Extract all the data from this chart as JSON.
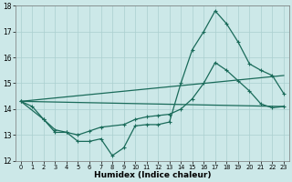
{
  "xlabel": "Humidex (Indice chaleur)",
  "bg_color": "#cce8e8",
  "grid_color": "#aacfcf",
  "line_color": "#1a6b5a",
  "xlim": [
    -0.5,
    23.5
  ],
  "ylim": [
    12,
    18
  ],
  "yticks": [
    12,
    13,
    14,
    15,
    16,
    17,
    18
  ],
  "xticks": [
    0,
    1,
    2,
    3,
    4,
    5,
    6,
    7,
    8,
    9,
    10,
    11,
    12,
    13,
    14,
    15,
    16,
    17,
    18,
    19,
    20,
    21,
    22,
    23
  ],
  "line_flat": {
    "x": [
      0,
      23
    ],
    "y": [
      14.3,
      14.1
    ]
  },
  "line_rising": {
    "x": [
      0,
      23
    ],
    "y": [
      14.3,
      15.3
    ]
  },
  "line_spike": {
    "x": [
      0,
      1,
      2,
      3,
      4,
      5,
      6,
      7,
      8,
      9,
      10,
      11,
      12,
      13,
      14,
      15,
      16,
      17,
      18,
      19,
      20,
      21,
      22,
      23
    ],
    "y": [
      14.3,
      14.1,
      13.6,
      13.1,
      13.1,
      12.75,
      12.75,
      12.85,
      12.2,
      12.5,
      13.35,
      13.4,
      13.4,
      13.5,
      15.0,
      16.3,
      17.0,
      17.8,
      17.3,
      16.6,
      15.75,
      15.5,
      15.3,
      14.6
    ]
  },
  "line_moderate": {
    "x": [
      0,
      2,
      3,
      4,
      5,
      6,
      7,
      9,
      10,
      11,
      12,
      13,
      14,
      15,
      16,
      17,
      18,
      19,
      20,
      21,
      22,
      23
    ],
    "y": [
      14.3,
      13.6,
      13.2,
      13.1,
      13.0,
      13.15,
      13.3,
      13.4,
      13.6,
      13.7,
      13.75,
      13.8,
      14.0,
      14.4,
      15.0,
      15.8,
      15.5,
      15.1,
      14.7,
      14.2,
      14.05,
      14.1
    ]
  }
}
